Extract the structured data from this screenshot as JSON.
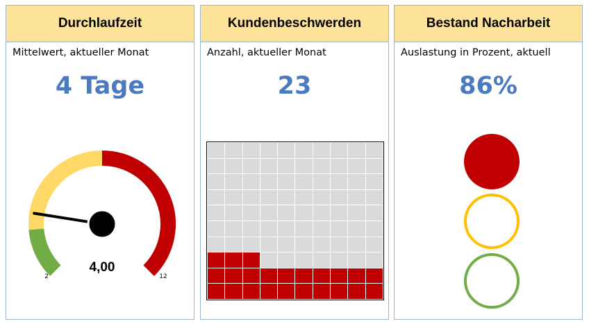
{
  "colors": {
    "header_bg": "#fde39a",
    "kpi_blue": "#4a7ac0",
    "red": "#c00000",
    "amber": "#ffd966",
    "green": "#70ad47",
    "grey": "#d9d9d9",
    "ring_amber": "#ffc000"
  },
  "cards": [
    {
      "title": "Durchlaufzeit",
      "subtitle": "Mittelwert, aktueller Monat",
      "kpi": "4 Tage",
      "gauge": {
        "min_label": "2",
        "max_label": "12",
        "value_label": "4,00",
        "value": 4,
        "min": 2,
        "max": 12,
        "bands": [
          {
            "from": 2,
            "to": 3.5,
            "color": "green"
          },
          {
            "from": 3.5,
            "to": 7,
            "color": "amber"
          },
          {
            "from": 7,
            "to": 12,
            "color": "red"
          }
        ]
      }
    },
    {
      "title": "Kundenbeschwerden",
      "subtitle": "Anzahl, aktueller Monat",
      "kpi": "23",
      "waffle": {
        "total": 100,
        "filled": 23
      }
    },
    {
      "title": "Bestand Nacharbeit",
      "subtitle": "Auslastung in Prozent, aktuell",
      "kpi": "86%",
      "traffic_light": {
        "active": "red",
        "lamps": [
          "red",
          "amber",
          "green"
        ]
      }
    }
  ]
}
